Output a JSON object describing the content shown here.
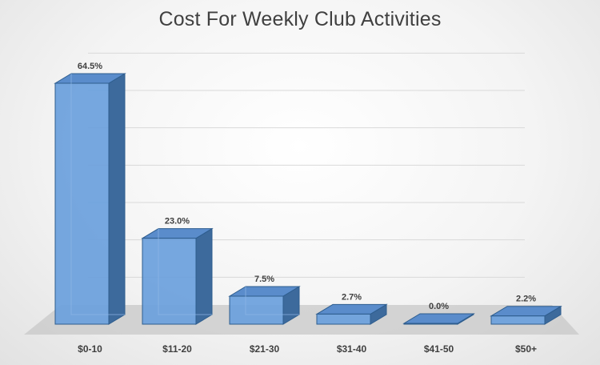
{
  "chart_data": {
    "type": "bar",
    "title": "Cost For Weekly Club Activities",
    "xlabel": "",
    "ylabel": "",
    "categories": [
      "$0-10",
      "$11-20",
      "$21-30",
      "$31-40",
      "$41-50",
      "$50+"
    ],
    "values": [
      64.5,
      23.0,
      7.5,
      2.7,
      0.0,
      2.2
    ],
    "data_labels": [
      "64.5%",
      "23.0%",
      "7.5%",
      "2.7%",
      "0.0%",
      "2.2%"
    ],
    "ylim": [
      0,
      70
    ],
    "grid": true,
    "legend": "none",
    "style": "3d-column"
  },
  "colors": {
    "bar_front": "#6a9fdc",
    "bar_side": "#3d6a9c",
    "bar_top": "#5a8ccb",
    "bar_edge": "#2e5d8e",
    "floor": "#c8c8c8",
    "gridline": "#d9d9d9",
    "text": "#404040"
  }
}
